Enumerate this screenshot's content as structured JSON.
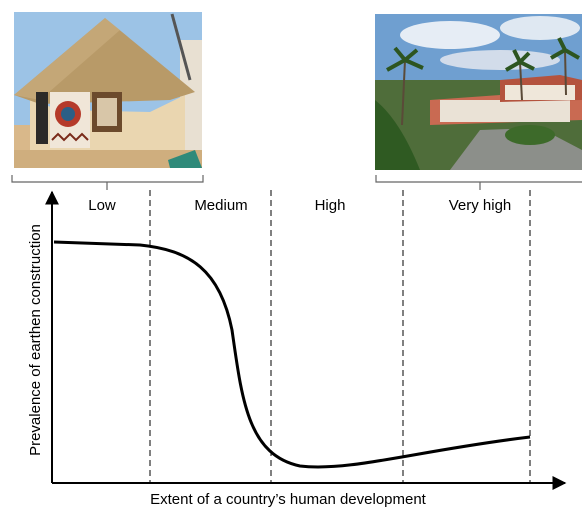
{
  "columns": [
    "Low",
    "Medium",
    "High",
    "Very high"
  ],
  "y_axis_label": "Prevalence of earthen construction",
  "x_axis_label": "Extent of a country’s human development"
}
